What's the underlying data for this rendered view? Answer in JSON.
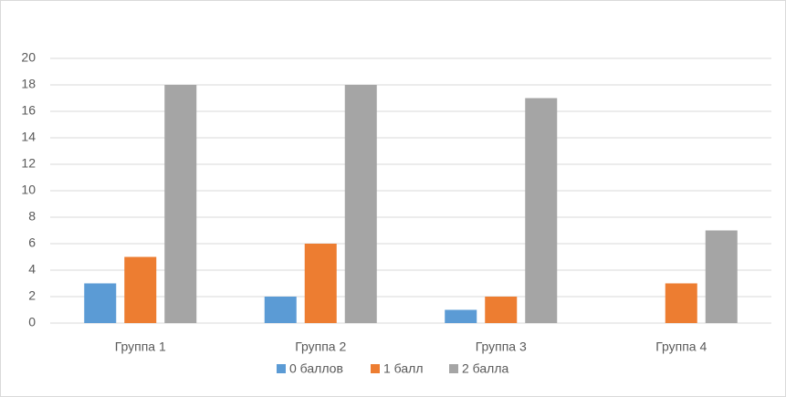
{
  "chart_data": {
    "type": "bar",
    "categories": [
      "Группа 1",
      "Группа 2",
      "Группа 3",
      "Группа 4"
    ],
    "series": [
      {
        "name": "0 баллов",
        "color": "#5b9bd5",
        "values": [
          3,
          2,
          1,
          0
        ]
      },
      {
        "name": "1 балл",
        "color": "#ed7d31",
        "values": [
          5,
          6,
          2,
          3
        ]
      },
      {
        "name": "2 балла",
        "color": "#a5a5a5",
        "values": [
          18,
          18,
          17,
          7
        ]
      }
    ],
    "ylim": [
      0,
      20
    ],
    "yticks": [
      0,
      2,
      4,
      6,
      8,
      10,
      12,
      14,
      16,
      18,
      20
    ],
    "grid": true,
    "legend": "bottom"
  }
}
